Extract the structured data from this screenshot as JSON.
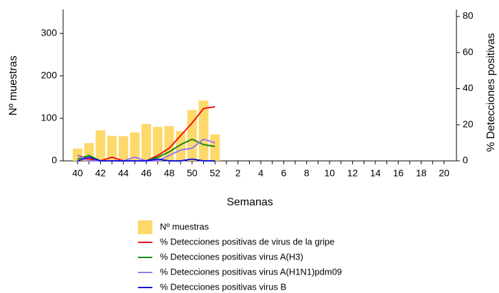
{
  "chart_data": {
    "type": "bar",
    "x_label": "Semanas",
    "y_label": "Nº muestras",
    "y2_label": "% Detecciones positivas",
    "categories": [
      "40",
      null,
      "42",
      null,
      "44",
      null,
      "46",
      null,
      "48",
      null,
      "50",
      null,
      "52",
      null,
      "2",
      null,
      "4",
      null,
      "6",
      null,
      "8",
      null,
      "10",
      null,
      "12",
      null,
      "14",
      null,
      "16",
      null,
      "18",
      null,
      "20"
    ],
    "ylim": [
      0,
      356
    ],
    "yticks": [
      0,
      100,
      200,
      300
    ],
    "y2lim": [
      0,
      83.8
    ],
    "y2ticks": [
      0,
      20,
      40,
      60,
      80
    ],
    "series": [
      {
        "name": "Nº muestras",
        "type": "bar",
        "color": "#fdd96b",
        "values": [
          29,
          42,
          72,
          59,
          58,
          67,
          87,
          80,
          82,
          70,
          120,
          142,
          62,
          null,
          null,
          null,
          null,
          null,
          null,
          null,
          null,
          null,
          null,
          null,
          null,
          null,
          null,
          null,
          null,
          null,
          null,
          null,
          null
        ]
      },
      {
        "name": "% Detecciones positivas de virus de la gripe",
        "type": "line",
        "axis": "y2",
        "color": "#ee1111",
        "values": [
          3,
          1,
          0,
          2,
          0,
          0,
          0,
          3,
          7,
          14,
          21,
          29,
          30,
          null,
          null,
          null,
          null,
          null,
          null,
          null,
          null,
          null,
          null,
          null,
          null,
          null,
          null,
          null,
          null,
          null,
          null,
          null,
          null
        ]
      },
      {
        "name": "% Detecciones positivas virus A(H3)",
        "type": "line",
        "axis": "y2",
        "color": "#118811",
        "values": [
          1,
          3,
          0,
          0,
          0,
          0,
          0,
          2,
          5,
          9,
          12,
          9,
          8,
          null,
          null,
          null,
          null,
          null,
          null,
          null,
          null,
          null,
          null,
          null,
          null,
          null,
          null,
          null,
          null,
          null,
          null,
          null,
          null
        ]
      },
      {
        "name": "% Detecciones positivas virus A(H1N1)pdm09",
        "type": "line",
        "axis": "y2",
        "color": "#9977ee",
        "values": [
          3,
          0,
          0,
          0,
          0,
          2,
          0,
          0,
          3,
          6,
          7,
          12,
          10,
          null,
          null,
          null,
          null,
          null,
          null,
          null,
          null,
          null,
          null,
          null,
          null,
          null,
          null,
          null,
          null,
          null,
          null,
          null,
          null
        ]
      },
      {
        "name": "% Detecciones positivas virus B",
        "type": "line",
        "axis": "y2",
        "color": "#1111dd",
        "values": [
          0,
          2,
          0,
          0,
          0,
          0,
          0,
          1,
          0,
          0,
          1,
          0,
          0,
          null,
          null,
          null,
          null,
          null,
          null,
          null,
          null,
          null,
          null,
          null,
          null,
          null,
          null,
          null,
          null,
          null,
          null,
          null,
          null
        ]
      }
    ]
  }
}
